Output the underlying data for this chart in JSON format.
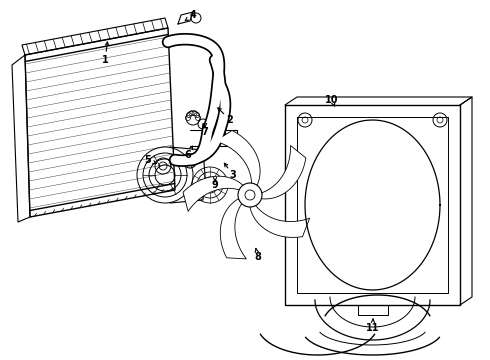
{
  "bg_color": "#ffffff",
  "line_color": "#000000",
  "fig_width": 4.9,
  "fig_height": 3.6,
  "dpi": 100
}
